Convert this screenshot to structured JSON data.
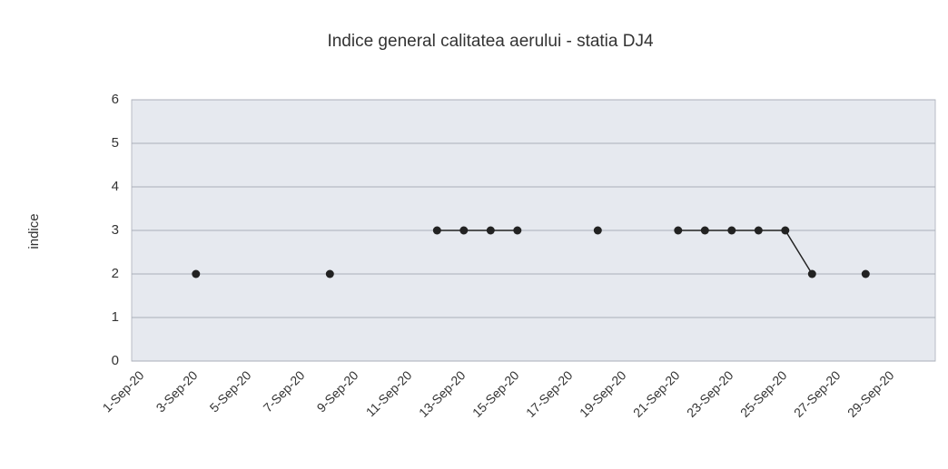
{
  "chart_data": {
    "type": "line",
    "title": "Indice general calitatea aerului -  statia DJ4",
    "y_label": "indice",
    "categories": [
      "1-Sep-20",
      null,
      "3-Sep-20",
      null,
      "5-Sep-20",
      null,
      "7-Sep-20",
      null,
      "9-Sep-20",
      null,
      "11-Sep-20",
      null,
      "13-Sep-20",
      null,
      "15-Sep-20",
      null,
      "17-Sep-20",
      null,
      "19-Sep-20",
      null,
      "21-Sep-20",
      null,
      "23-Sep-20",
      null,
      "25-Sep-20",
      null,
      "27-Sep-20",
      null,
      "29-Sep-20",
      null
    ],
    "series": [
      {
        "name": "indice",
        "color": "#222222",
        "values": [
          null,
          null,
          2,
          null,
          null,
          null,
          null,
          2,
          null,
          null,
          null,
          3,
          3,
          3,
          3,
          null,
          null,
          3,
          null,
          null,
          3,
          3,
          3,
          3,
          3,
          2,
          null,
          2,
          null,
          null
        ]
      }
    ],
    "ylim": [
      0,
      6
    ],
    "yticks": [
      0,
      1,
      2,
      3,
      4,
      5,
      6
    ],
    "grid": true
  }
}
